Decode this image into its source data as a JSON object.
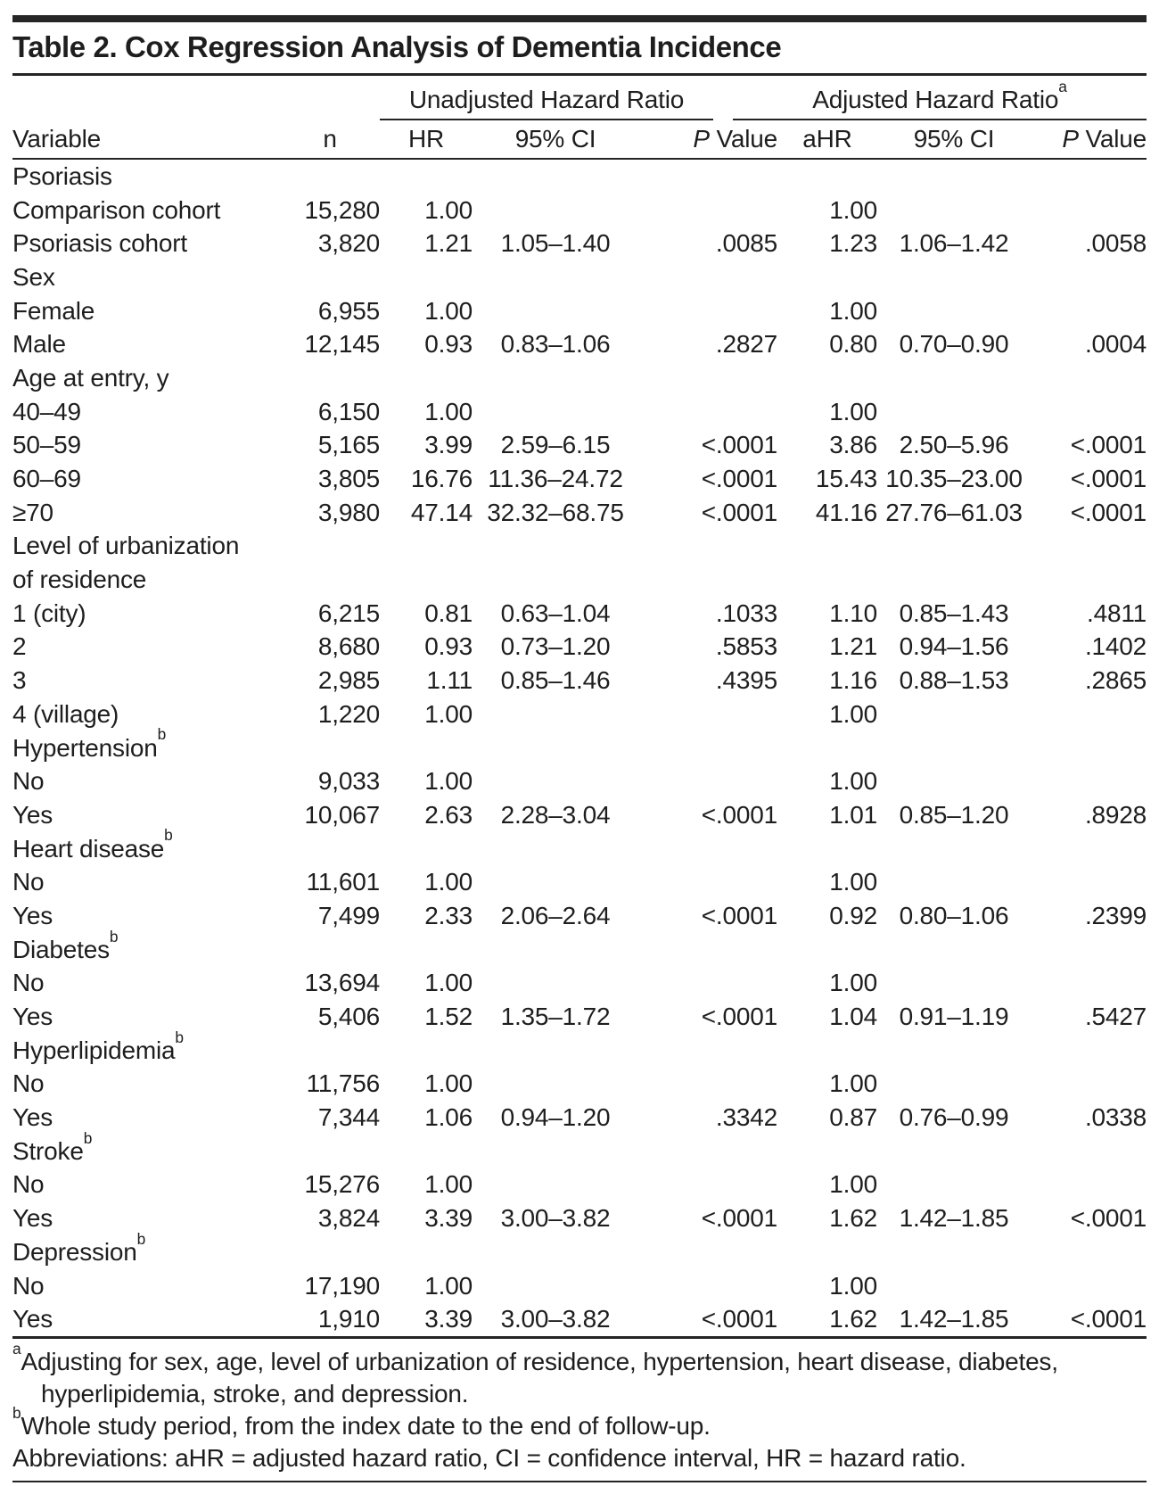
{
  "title": "Table 2. Cox Regression Analysis of Dementia Incidence",
  "table": {
    "header": {
      "group1": "Unadjusted Hazard Ratio",
      "group2": "Adjusted Hazard Ratio",
      "group2_sup": "a",
      "variable": "Variable",
      "n": "n",
      "hr": "HR",
      "ci": "95% CI",
      "p_italic": "P",
      "p_word": " Value",
      "ahr": "aHR",
      "ci2": "95% CI",
      "p_italic2": "P",
      "p_word2": " Value"
    },
    "rows": [
      {
        "label": "Psoriasis",
        "indent": 0,
        "n": "",
        "hr": "",
        "ci1": "",
        "p1": "",
        "ahr": "",
        "ci2": "",
        "p2": ""
      },
      {
        "label": "Comparison cohort",
        "indent": 1,
        "n": "15,280",
        "hr": "1.00",
        "ci1": "",
        "p1": "",
        "ahr": "1.00",
        "ci2": "",
        "p2": ""
      },
      {
        "label": "Psoriasis cohort",
        "indent": 1,
        "n": "3,820",
        "hr": "1.21",
        "ci1": "1.05–1.40",
        "p1": ".0085",
        "ahr": "1.23",
        "ci2": "1.06–1.42",
        "p2": ".0058"
      },
      {
        "label": "Sex",
        "indent": 0,
        "n": "",
        "hr": "",
        "ci1": "",
        "p1": "",
        "ahr": "",
        "ci2": "",
        "p2": ""
      },
      {
        "label": "Female",
        "indent": 1,
        "n": "6,955",
        "hr": "1.00",
        "ci1": "",
        "p1": "",
        "ahr": "1.00",
        "ci2": "",
        "p2": ""
      },
      {
        "label": "Male",
        "indent": 1,
        "n": "12,145",
        "hr": "0.93",
        "ci1": "0.83–1.06",
        "p1": ".2827",
        "ahr": "0.80",
        "ci2": "0.70–0.90",
        "p2": ".0004"
      },
      {
        "label": "Age at entry, y",
        "indent": 0,
        "n": "",
        "hr": "",
        "ci1": "",
        "p1": "",
        "ahr": "",
        "ci2": "",
        "p2": ""
      },
      {
        "label": "40–49",
        "indent": 1,
        "n": "6,150",
        "hr": "1.00",
        "ci1": "",
        "p1": "",
        "ahr": "1.00",
        "ci2": "",
        "p2": ""
      },
      {
        "label": "50–59",
        "indent": 1,
        "n": "5,165",
        "hr": "3.99",
        "ci1": "2.59–6.15",
        "p1": "<.0001",
        "ahr": "3.86",
        "ci2": "2.50–5.96",
        "p2": "<.0001"
      },
      {
        "label": "60–69",
        "indent": 1,
        "n": "3,805",
        "hr": "16.76",
        "ci1": "11.36–24.72",
        "p1": "<.0001",
        "ahr": "15.43",
        "ci2": "10.35–23.00",
        "p2": "<.0001"
      },
      {
        "label": "≥70",
        "indent": 1,
        "n": "3,980",
        "hr": "47.14",
        "ci1": "32.32–68.75",
        "p1": "<.0001",
        "ahr": "41.16",
        "ci2": "27.76–61.03",
        "p2": "<.0001"
      },
      {
        "label": "Level of urbanization",
        "indent": 0,
        "n": "",
        "hr": "",
        "ci1": "",
        "p1": "",
        "ahr": "",
        "ci2": "",
        "p2": ""
      },
      {
        "label": "of residence",
        "indent": 1,
        "n": "",
        "hr": "",
        "ci1": "",
        "p1": "",
        "ahr": "",
        "ci2": "",
        "p2": ""
      },
      {
        "label": "1 (city)",
        "indent": 2,
        "n": "6,215",
        "hr": "0.81",
        "ci1": "0.63–1.04",
        "p1": ".1033",
        "ahr": "1.10",
        "ci2": "0.85–1.43",
        "p2": ".4811"
      },
      {
        "label": "2",
        "indent": 2,
        "n": "8,680",
        "hr": "0.93",
        "ci1": "0.73–1.20",
        "p1": ".5853",
        "ahr": "1.21",
        "ci2": "0.94–1.56",
        "p2": ".1402"
      },
      {
        "label": "3",
        "indent": 2,
        "n": "2,985",
        "hr": "1.11",
        "ci1": "0.85–1.46",
        "p1": ".4395",
        "ahr": "1.16",
        "ci2": "0.88–1.53",
        "p2": ".2865"
      },
      {
        "label": "4 (village)",
        "indent": 2,
        "n": "1,220",
        "hr": "1.00",
        "ci1": "",
        "p1": "",
        "ahr": "1.00",
        "ci2": "",
        "p2": ""
      },
      {
        "label": "Hypertension",
        "sup": "b",
        "indent": 0,
        "n": "",
        "hr": "",
        "ci1": "",
        "p1": "",
        "ahr": "",
        "ci2": "",
        "p2": ""
      },
      {
        "label": "No",
        "indent": 1,
        "n": "9,033",
        "hr": "1.00",
        "ci1": "",
        "p1": "",
        "ahr": "1.00",
        "ci2": "",
        "p2": ""
      },
      {
        "label": "Yes",
        "indent": 1,
        "n": "10,067",
        "hr": "2.63",
        "ci1": "2.28–3.04",
        "p1": "<.0001",
        "ahr": "1.01",
        "ci2": "0.85–1.20",
        "p2": ".8928"
      },
      {
        "label": "Heart disease",
        "sup": "b",
        "indent": 0,
        "n": "",
        "hr": "",
        "ci1": "",
        "p1": "",
        "ahr": "",
        "ci2": "",
        "p2": ""
      },
      {
        "label": "No",
        "indent": 1,
        "n": "11,601",
        "hr": "1.00",
        "ci1": "",
        "p1": "",
        "ahr": "1.00",
        "ci2": "",
        "p2": ""
      },
      {
        "label": "Yes",
        "indent": 1,
        "n": "7,499",
        "hr": "2.33",
        "ci1": "2.06–2.64",
        "p1": "<.0001",
        "ahr": "0.92",
        "ci2": "0.80–1.06",
        "p2": ".2399"
      },
      {
        "label": "Diabetes",
        "sup": "b",
        "indent": 0,
        "n": "",
        "hr": "",
        "ci1": "",
        "p1": "",
        "ahr": "",
        "ci2": "",
        "p2": ""
      },
      {
        "label": "No",
        "indent": 1,
        "n": "13,694",
        "hr": "1.00",
        "ci1": "",
        "p1": "",
        "ahr": "1.00",
        "ci2": "",
        "p2": ""
      },
      {
        "label": "Yes",
        "indent": 1,
        "n": "5,406",
        "hr": "1.52",
        "ci1": "1.35–1.72",
        "p1": "<.0001",
        "ahr": "1.04",
        "ci2": "0.91–1.19",
        "p2": ".5427"
      },
      {
        "label": "Hyperlipidemia",
        "sup": "b",
        "indent": 0,
        "n": "",
        "hr": "",
        "ci1": "",
        "p1": "",
        "ahr": "",
        "ci2": "",
        "p2": ""
      },
      {
        "label": "No",
        "indent": 1,
        "n": "11,756",
        "hr": "1.00",
        "ci1": "",
        "p1": "",
        "ahr": "1.00",
        "ci2": "",
        "p2": ""
      },
      {
        "label": "Yes",
        "indent": 1,
        "n": "7,344",
        "hr": "1.06",
        "ci1": "0.94–1.20",
        "p1": ".3342",
        "ahr": "0.87",
        "ci2": "0.76–0.99",
        "p2": ".0338"
      },
      {
        "label": "Stroke",
        "sup": "b",
        "indent": 0,
        "n": "",
        "hr": "",
        "ci1": "",
        "p1": "",
        "ahr": "",
        "ci2": "",
        "p2": ""
      },
      {
        "label": "No",
        "indent": 1,
        "n": "15,276",
        "hr": "1.00",
        "ci1": "",
        "p1": "",
        "ahr": "1.00",
        "ci2": "",
        "p2": ""
      },
      {
        "label": "Yes",
        "indent": 1,
        "n": "3,824",
        "hr": "3.39",
        "ci1": "3.00–3.82",
        "p1": "<.0001",
        "ahr": "1.62",
        "ci2": "1.42–1.85",
        "p2": "<.0001"
      },
      {
        "label": "Depression",
        "sup": "b",
        "indent": 0,
        "n": "",
        "hr": "",
        "ci1": "",
        "p1": "",
        "ahr": "",
        "ci2": "",
        "p2": ""
      },
      {
        "label": "No",
        "indent": 1,
        "n": "17,190",
        "hr": "1.00",
        "ci1": "",
        "p1": "",
        "ahr": "1.00",
        "ci2": "",
        "p2": ""
      },
      {
        "label": "Yes",
        "indent": 1,
        "n": "1,910",
        "hr": "3.39",
        "ci1": "3.00–3.82",
        "p1": "<.0001",
        "ahr": "1.62",
        "ci2": "1.42–1.85",
        "p2": "<.0001"
      }
    ]
  },
  "footnotes": {
    "a": {
      "sup": "a",
      "text": "Adjusting for sex, age, level of urbanization of residence, hypertension, heart disease, diabetes, hyperlipidemia, stroke, and depression."
    },
    "b": {
      "sup": "b",
      "text": "Whole study period, from the index date to the end of follow-up."
    },
    "abbreviations": "Abbreviations: aHR = adjusted hazard ratio, CI = confidence interval, HR = hazard ratio."
  },
  "colors": {
    "text": "#1e1e1e",
    "rule": "#242424",
    "background": "#ffffff"
  }
}
